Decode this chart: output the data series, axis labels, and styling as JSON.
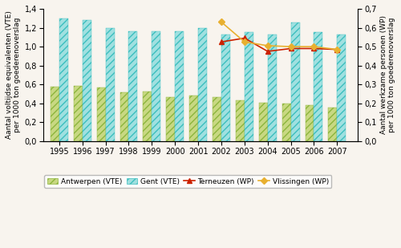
{
  "years_vte": [
    1995,
    1996,
    1997,
    1998,
    1999,
    2000,
    2001,
    2002,
    2003,
    2004,
    2005,
    2006,
    2007
  ],
  "antwerpen_vte": [
    0.58,
    0.585,
    0.565,
    0.52,
    0.525,
    0.465,
    0.48,
    0.47,
    0.43,
    0.41,
    0.395,
    0.385,
    0.36
  ],
  "gent_vte": [
    1.3,
    1.285,
    1.2,
    1.165,
    1.165,
    1.165,
    1.2,
    1.13,
    1.155,
    1.13,
    1.255,
    1.155,
    1.13
  ],
  "years_wp": [
    2002,
    2003,
    2004,
    2005,
    2006,
    2007
  ],
  "terneuzen_wp": [
    0.525,
    0.545,
    0.475,
    0.49,
    0.49,
    0.485
  ],
  "vlissingen_wp": [
    0.63,
    0.525,
    0.505,
    0.5,
    0.5,
    0.485
  ],
  "antwerpen_color": "#8db53d",
  "antwerpen_face": "#c8d882",
  "gent_color": "#3dbfbf",
  "gent_face": "#a0e0e0",
  "terneuzen_color": "#cc2200",
  "vlissingen_color": "#e8b030",
  "ylabel_left": "Aantal voltijdse equivalenten (VTE)\nper 1000 ton goederenoverslag",
  "ylabel_right": "Aantal werkzame personen (WP)\nper 1000 ton goederenoverslag",
  "ylim_left": [
    0,
    1.4
  ],
  "ylim_right": [
    0,
    0.7
  ],
  "yticks_left": [
    0,
    0.2,
    0.4,
    0.6,
    0.8,
    1.0,
    1.2,
    1.4
  ],
  "yticks_right": [
    0,
    0.1,
    0.2,
    0.3,
    0.4,
    0.5,
    0.6,
    0.7
  ],
  "bar_width": 0.38,
  "bg_color": "#f8f4ee",
  "plot_bg": "#ffffff"
}
